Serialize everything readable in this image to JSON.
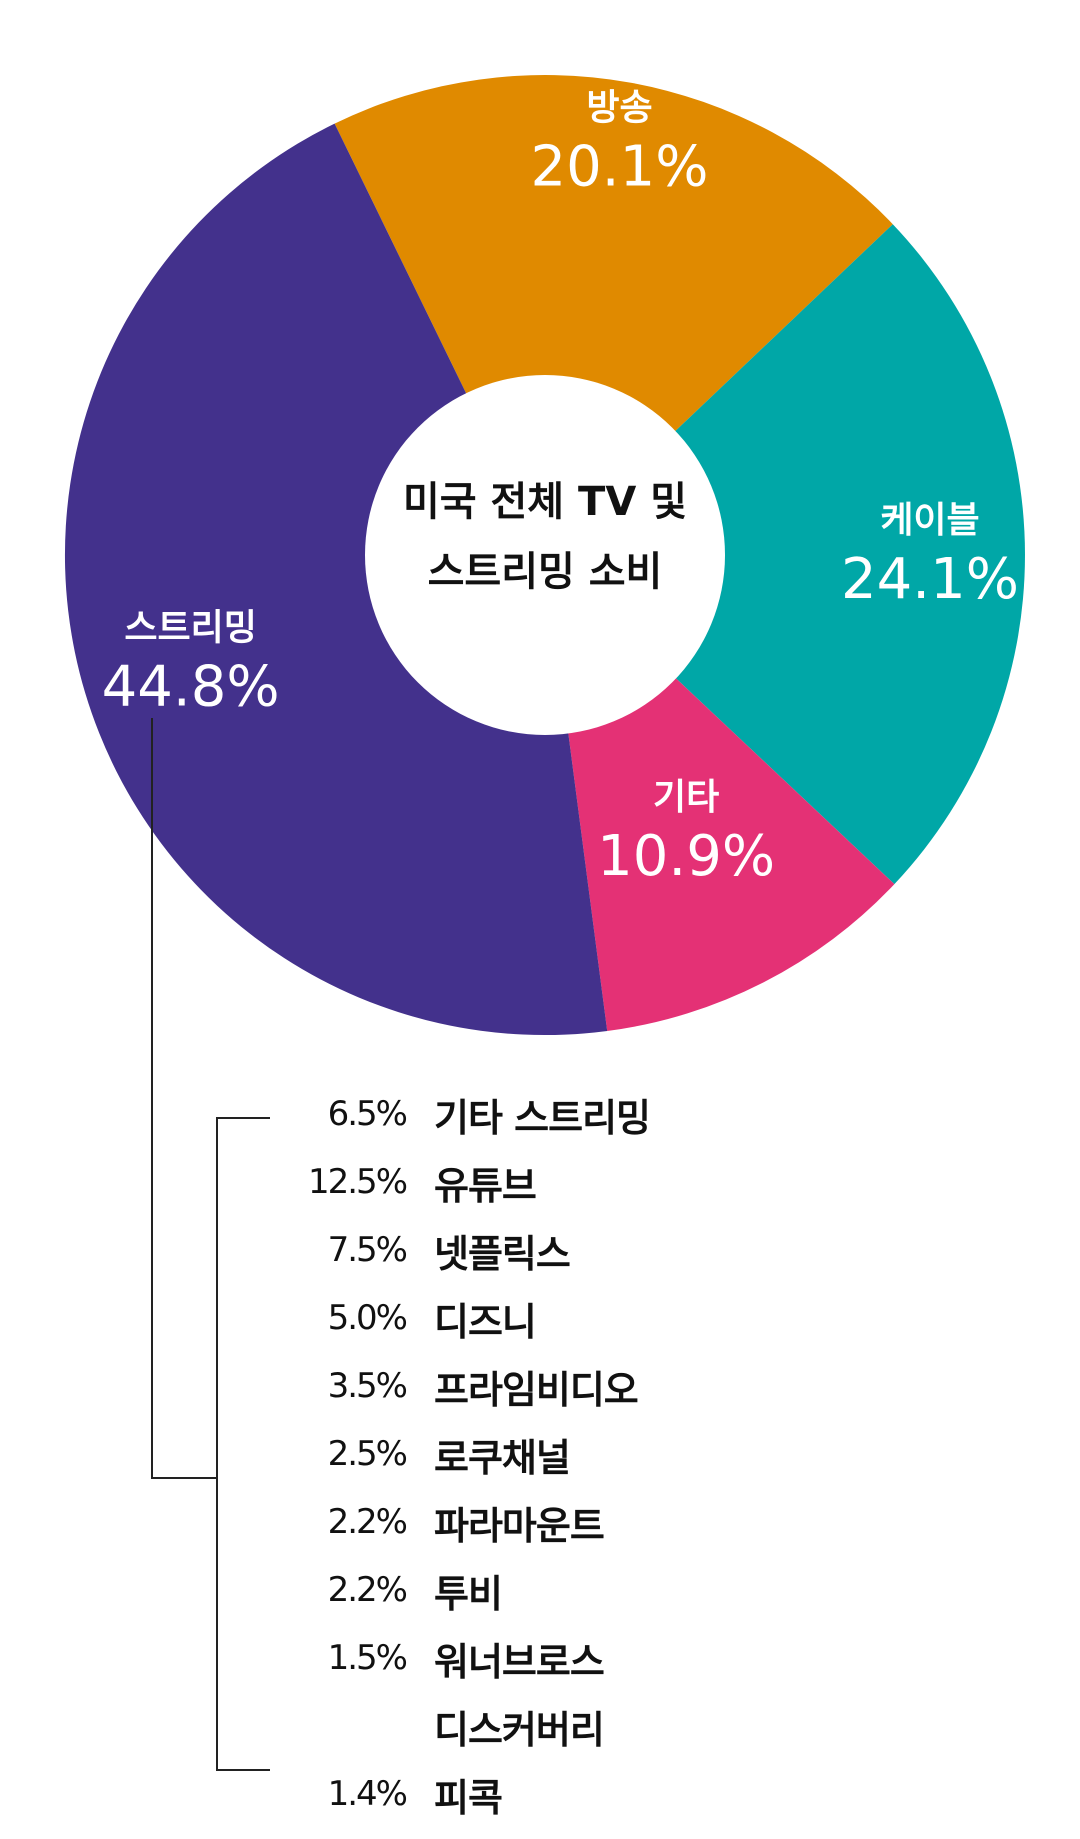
{
  "chart_data": {
    "type": "pie",
    "center_label": [
      "미국 전체 TV 및",
      "스트리밍 소비"
    ],
    "slices": [
      {
        "name": "방송",
        "value": 20.1,
        "label": "20.1%",
        "color": "#E08A00"
      },
      {
        "name": "케이블",
        "value": 24.1,
        "label": "24.1%",
        "color": "#00A7A7"
      },
      {
        "name": "기타",
        "value": 10.9,
        "label": "10.9%",
        "color": "#E43175"
      },
      {
        "name": "스트리밍",
        "value": 44.8,
        "label": "44.8%",
        "color": "#43318C"
      }
    ],
    "breakdown": {
      "parent": "스트리밍",
      "items": [
        {
          "pct": "6.5%",
          "value": 6.5,
          "name": "기타 스트리밍"
        },
        {
          "pct": "12.5%",
          "value": 12.5,
          "name": "유튜브"
        },
        {
          "pct": "7.5%",
          "value": 7.5,
          "name": "넷플릭스"
        },
        {
          "pct": "5.0%",
          "value": 5.0,
          "name": "디즈니"
        },
        {
          "pct": "3.5%",
          "value": 3.5,
          "name": "프라임비디오"
        },
        {
          "pct": "2.5%",
          "value": 2.5,
          "name": "로쿠채널"
        },
        {
          "pct": "2.2%",
          "value": 2.2,
          "name": "파라마운트"
        },
        {
          "pct": "2.2%",
          "value": 2.2,
          "name": "투비"
        },
        {
          "pct": "1.5%",
          "value": 1.5,
          "name": "워너브로스",
          "name_line2": "디스커버리"
        },
        {
          "pct": "1.4%",
          "value": 1.4,
          "name": "피콕"
        }
      ]
    }
  }
}
